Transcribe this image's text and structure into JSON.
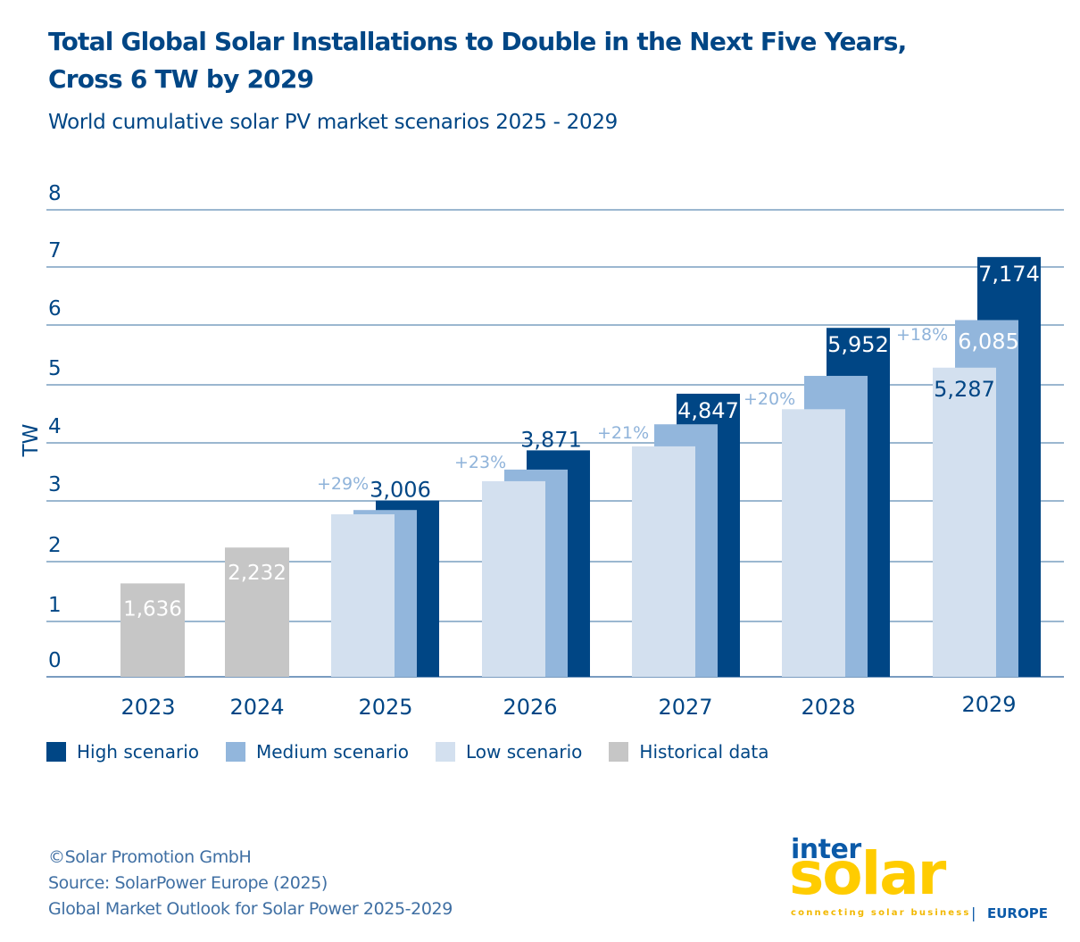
{
  "title_line1": "Total Global Solar Installations to Double in the Next Five Years,",
  "title_line2": "Cross 6 TW by 2029",
  "subtitle": "World cumulative solar PV market scenarios 2025 - 2029",
  "colors": {
    "high": "#004685",
    "medium": "#92b6dc",
    "low": "#d3e0ef",
    "historical": "#c6c6c6",
    "growth_label": "#8fb3da",
    "text": "#004685",
    "grid": "#5f8cb5"
  },
  "chart_data": {
    "type": "bar",
    "title": "Total Global Solar Installations to Double in the Next Five Years, Cross 6 TW by 2029",
    "subtitle": "World cumulative solar PV market scenarios 2025 - 2029",
    "xlabel": "",
    "ylabel": "TW",
    "ylim": [
      0,
      8
    ],
    "yticks": [
      0,
      1,
      2,
      3,
      4,
      5,
      6,
      7,
      8
    ],
    "grid": true,
    "legend_position": "bottom-left",
    "categories": [
      "2023",
      "2024",
      "2025",
      "2026",
      "2027",
      "2028",
      "2029"
    ],
    "historical": [
      {
        "year": "2023",
        "value": 1.636,
        "label": "1,636"
      },
      {
        "year": "2024",
        "value": 2.232,
        "label": "2,232"
      }
    ],
    "series": [
      {
        "name": "Low scenario",
        "key": "low",
        "values": [
          null,
          null,
          2.78,
          3.34,
          3.94,
          4.58,
          5.287
        ],
        "labels": [
          null,
          null,
          null,
          null,
          null,
          null,
          "5,287"
        ]
      },
      {
        "name": "Medium scenario",
        "key": "medium",
        "values": [
          null,
          null,
          2.85,
          3.54,
          4.32,
          5.15,
          6.085
        ],
        "labels": [
          null,
          null,
          null,
          null,
          null,
          null,
          "6,085"
        ]
      },
      {
        "name": "High scenario",
        "key": "high",
        "values": [
          null,
          null,
          3.006,
          3.871,
          4.847,
          5.952,
          7.174
        ],
        "labels": [
          null,
          null,
          "3,006",
          "3,871",
          "4,847",
          "5,952",
          "7,174"
        ]
      }
    ],
    "growth_labels": [
      null,
      null,
      "+29%",
      "+23%",
      "+21%",
      "+20%",
      "+18%"
    ],
    "legend": [
      {
        "key": "high",
        "label": "High scenario"
      },
      {
        "key": "medium",
        "label": "Medium scenario"
      },
      {
        "key": "low",
        "label": "Low scenario"
      },
      {
        "key": "historical",
        "label": "Historical data"
      }
    ]
  },
  "footer": {
    "copyright": "©Solar Promotion GmbH",
    "source": "Source: SolarPower Europe (2025)",
    "report": "Global Market Outlook for Solar Power 2025-2029"
  },
  "logo": {
    "inter": "inter",
    "solar": "solar",
    "tagline": "connecting solar business",
    "separator": "|",
    "region": "EUROPE"
  }
}
